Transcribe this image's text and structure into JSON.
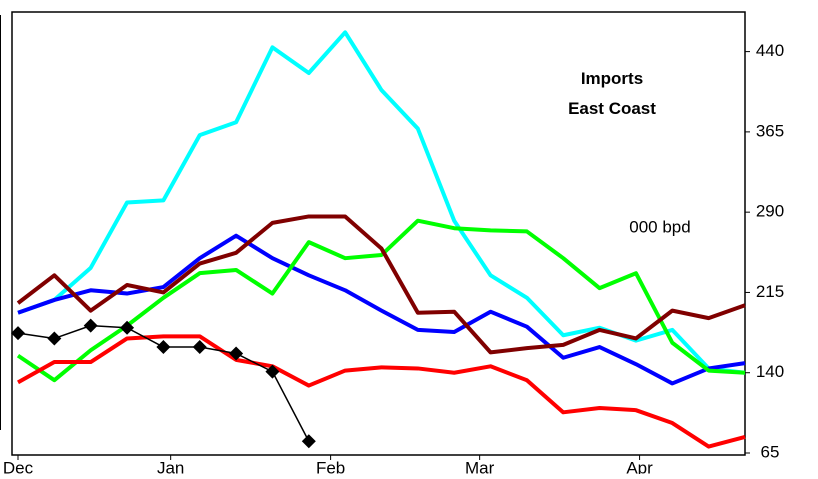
{
  "chart_data": {
    "type": "line",
    "title": "Imports\nEast Coast",
    "annotation": "000 bpd",
    "x": [
      0,
      1,
      2,
      3,
      4,
      5,
      6,
      7,
      8,
      9,
      10,
      11,
      12,
      13,
      14,
      15,
      16,
      17,
      18,
      19,
      20
    ],
    "xlim": [
      0,
      20
    ],
    "xticks": [
      {
        "value": 0,
        "label": "Dec"
      },
      {
        "value": 4.2,
        "label": "Jan"
      },
      {
        "value": 8.6,
        "label": "Feb"
      },
      {
        "value": 12.7,
        "label": "Mar"
      },
      {
        "value": 17.1,
        "label": "Apr"
      }
    ],
    "ylim": [
      65,
      477
    ],
    "yticks": [
      65,
      140,
      215,
      290,
      365,
      440
    ],
    "series": [
      {
        "color": "#00ffff",
        "values": [
          196,
          208,
          238,
          299,
          301,
          362,
          374,
          444,
          420,
          458,
          404,
          368,
          282,
          231,
          210,
          175,
          182,
          170,
          180,
          144,
          140
        ]
      },
      {
        "color": "#0000ff",
        "values": [
          196,
          208,
          217,
          214,
          220,
          247,
          268,
          247,
          231,
          217,
          198,
          180,
          178,
          197,
          183,
          154,
          164,
          148,
          130,
          144,
          149
        ]
      },
      {
        "color": "#00ff00",
        "values": [
          156,
          133,
          161,
          184,
          210,
          233,
          236,
          214,
          262,
          247,
          250,
          282,
          275,
          273,
          272,
          247,
          219,
          233,
          168,
          142,
          140
        ]
      },
      {
        "color": "#800000",
        "values": [
          205,
          231,
          198,
          222,
          215,
          242,
          252,
          280,
          286,
          286,
          256,
          196,
          197,
          159,
          163,
          166,
          180,
          172,
          198,
          191,
          203
        ]
      },
      {
        "color": "#ff0000",
        "values": [
          131,
          150,
          150,
          172,
          174,
          174,
          152,
          146,
          128,
          142,
          145,
          144,
          140,
          146,
          133,
          103,
          107,
          105,
          93,
          71,
          80
        ]
      },
      {
        "color": "#000000",
        "marker": "diamond",
        "values": [
          177,
          172,
          184,
          182,
          164,
          164,
          158,
          141,
          76,
          null,
          null,
          null,
          null,
          null,
          null,
          null,
          null,
          null,
          null,
          null,
          null
        ]
      }
    ]
  }
}
